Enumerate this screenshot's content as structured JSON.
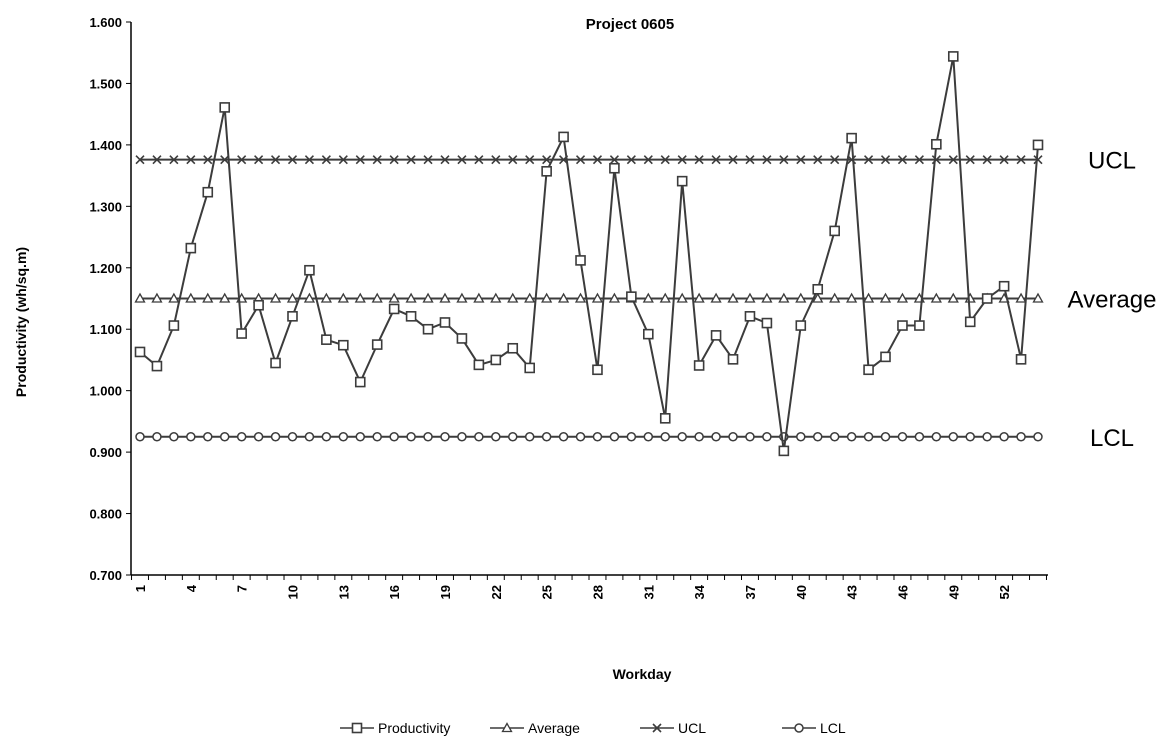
{
  "chart_data": {
    "type": "line",
    "title": "Project 0605",
    "xlabel": "Workday",
    "ylabel": "Productivity (wh/sq.m)",
    "ylim": [
      0.7,
      1.6
    ],
    "ytick_labels": [
      "0.700",
      "0.800",
      "0.900",
      "1.000",
      "1.100",
      "1.200",
      "1.300",
      "1.400",
      "1.500",
      "1.600"
    ],
    "x_tick_labels": [
      "1",
      "4",
      "7",
      "10",
      "13",
      "16",
      "19",
      "22",
      "25",
      "28",
      "31",
      "34",
      "37",
      "40",
      "43",
      "46",
      "49",
      "52"
    ],
    "x": [
      1,
      2,
      3,
      4,
      5,
      6,
      7,
      8,
      9,
      10,
      11,
      12,
      13,
      14,
      15,
      16,
      17,
      18,
      19,
      20,
      21,
      22,
      23,
      24,
      25,
      26,
      27,
      28,
      29,
      30,
      31,
      32,
      33,
      34,
      35,
      36,
      37,
      38,
      39,
      40,
      41,
      42,
      43,
      44,
      45,
      46,
      47,
      48,
      49,
      50,
      51,
      52,
      53,
      54
    ],
    "grid": false,
    "legend_position": "bottom",
    "series": [
      {
        "name": "Productivity",
        "marker": "square",
        "color": "#3c3c3c",
        "values": [
          1.063,
          1.04,
          1.106,
          1.232,
          1.323,
          1.461,
          1.093,
          1.139,
          1.045,
          1.121,
          1.196,
          1.083,
          1.074,
          1.014,
          1.075,
          1.133,
          1.121,
          1.1,
          1.111,
          1.085,
          1.042,
          1.05,
          1.069,
          1.037,
          1.357,
          1.413,
          1.212,
          1.034,
          1.362,
          1.153,
          1.092,
          0.955,
          1.341,
          1.041,
          1.09,
          1.051,
          1.121,
          1.11,
          0.902,
          1.106,
          1.165,
          1.26,
          1.411,
          1.034,
          1.055,
          1.106,
          1.106,
          1.401,
          1.544,
          1.112,
          1.15,
          1.17,
          1.051,
          1.4
        ]
      },
      {
        "name": "Average",
        "marker": "triangle",
        "color": "#3c3c3c",
        "value": 1.15
      },
      {
        "name": "UCL",
        "marker": "x",
        "color": "#3c3c3c",
        "value": 1.376
      },
      {
        "name": "LCL",
        "marker": "circle",
        "color": "#3c3c3c",
        "value": 0.925
      }
    ],
    "annotations": [
      {
        "text": "UCL",
        "y": 1.376
      },
      {
        "text": "Average",
        "y": 1.15
      },
      {
        "text": "LCL",
        "y": 0.925
      }
    ]
  }
}
